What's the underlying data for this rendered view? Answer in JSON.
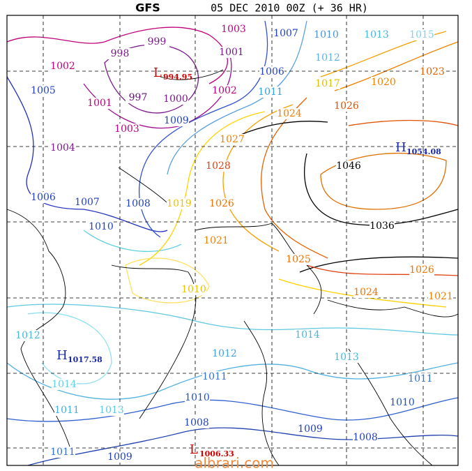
{
  "header": {
    "model": "GFS",
    "run": "05 DEC 2010 00Z (+ 36 HR)"
  },
  "isobar_labels": [
    "1003",
    "1007",
    "1010",
    "1013",
    "1015",
    "999",
    "998",
    "1001",
    "1012",
    "1023",
    "1002",
    "1006",
    "1017",
    "1020",
    "1005",
    "997",
    "1000",
    "1002",
    "1011",
    "1001",
    "1026",
    "1024",
    "1009",
    "1003",
    "1027",
    "1004",
    "1046",
    "1028",
    "1006",
    "1007",
    "1008",
    "1019",
    "1026",
    "1036",
    "1010",
    "1021",
    "1025",
    "1026",
    "1010",
    "1024",
    "1021",
    "1012",
    "1014",
    "1012",
    "1013",
    "1011",
    "1011",
    "1014",
    "1013",
    "1011",
    "1010",
    "1010",
    "1008",
    "1009",
    "1008",
    "1011",
    "1009"
  ],
  "centers": [
    {
      "type": "L",
      "value": "994.95"
    },
    {
      "type": "H",
      "value": "1054.08"
    },
    {
      "type": "H",
      "value": "1017.58"
    },
    {
      "type": "L",
      "value": "1006.33"
    }
  ],
  "watermark": "albrari.com"
}
